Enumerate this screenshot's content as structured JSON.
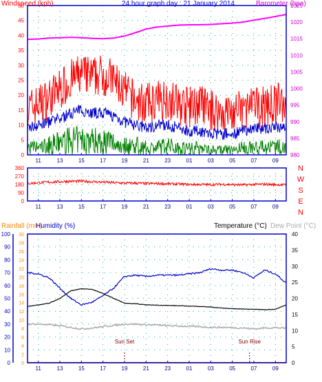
{
  "colors": {
    "wind": "#ff0000",
    "wind_avg": "#0000cc",
    "wind_low": "#008000",
    "barometer": "#ff00ff",
    "direction": "#ff0000",
    "rainfall": "#ff8800",
    "humidity": "#0000cc",
    "temperature": "#000000",
    "dewpoint": "#aaaaaa",
    "axis_left": "#ff0000",
    "axis_right": "#cc00cc",
    "grid_dot": "#00aaaa",
    "frame": "#0000cc",
    "title": "#0000cc"
  },
  "chart_data": [
    {
      "type": "line",
      "title": "24 hour graph day : 21 January 2014",
      "y_left_label": "Windspeed (kph)",
      "y_right_label": "Barometer (hpa)",
      "x_ticks": [
        "11",
        "13",
        "15",
        "17",
        "19",
        "21",
        "23",
        "01",
        "03",
        "05",
        "07",
        "09"
      ],
      "ylim_left": [
        0,
        50
      ],
      "y_left_ticks": [
        "0",
        "5",
        "10",
        "15",
        "20",
        "25",
        "30",
        "35",
        "40",
        "45",
        "50"
      ],
      "ylim_right": [
        980,
        1025
      ],
      "y_right_ticks": [
        "980",
        "985",
        "990",
        "995",
        "1000",
        "1005",
        "1010",
        "1015",
        "1020",
        "1025"
      ],
      "grid": true,
      "series": [
        {
          "axis": "right",
          "x": [
            0,
            1,
            2,
            3,
            4,
            5,
            6,
            7,
            8,
            9,
            10,
            11,
            12,
            13,
            14,
            15,
            16,
            17,
            18,
            19,
            20,
            21,
            22,
            23,
            24
          ],
          "values": [
            1014.8,
            1014.9,
            1015.2,
            1015.3,
            1015.4,
            1015.3,
            1015.1,
            1015.0,
            1015.2,
            1015.8,
            1016.8,
            1017.9,
            1018.5,
            1018.8,
            1019.1,
            1019.2,
            1019.2,
            1019.3,
            1019.5,
            1019.7,
            1020.0,
            1020.6,
            1021.1,
            1021.7,
            1022.3
          ]
        },
        {
          "axis": "left",
          "x": [
            0,
            1,
            2,
            3,
            4,
            5,
            6,
            7,
            8,
            9,
            10,
            11,
            12,
            13,
            14,
            15,
            16,
            17,
            18,
            19,
            20,
            21,
            22,
            23,
            24
          ],
          "values": [
            15,
            17,
            19,
            22,
            25,
            27,
            26,
            27,
            25,
            21,
            18,
            17,
            18,
            19,
            17,
            16,
            17,
            15,
            14,
            14,
            15,
            16,
            16,
            17,
            18
          ]
        },
        {
          "axis": "left",
          "x": [
            0,
            1,
            2,
            3,
            4,
            5,
            6,
            7,
            8,
            9,
            10,
            11,
            12,
            13,
            14,
            15,
            16,
            17,
            18,
            19,
            20,
            21,
            22,
            23,
            24
          ],
          "values": [
            9,
            10,
            11,
            12,
            14,
            15,
            14,
            14,
            13,
            11,
            10,
            9,
            10,
            10,
            9,
            8,
            8,
            7,
            7,
            7,
            8,
            9,
            9,
            9,
            10
          ]
        },
        {
          "axis": "left",
          "x": [
            0,
            1,
            2,
            3,
            4,
            5,
            6,
            7,
            8,
            9,
            10,
            11,
            12,
            13,
            14,
            15,
            16,
            17,
            18,
            19,
            20,
            21,
            22,
            23,
            24
          ],
          "values": [
            3,
            3,
            4,
            5,
            6,
            6,
            6,
            6,
            5,
            4,
            4,
            3,
            3,
            4,
            3,
            3,
            3,
            2,
            2,
            2,
            3,
            3,
            3,
            3,
            4
          ]
        }
      ]
    },
    {
      "type": "line",
      "x_ticks": [
        "11",
        "13",
        "15",
        "17",
        "19",
        "21",
        "23",
        "01",
        "03",
        "05",
        "07",
        "09"
      ],
      "ylim": [
        0,
        360
      ],
      "y_ticks": [
        "0",
        "90",
        "180",
        "270",
        "360"
      ],
      "right_labels": [
        "N",
        "W",
        "S",
        "E",
        "N"
      ],
      "grid": true,
      "series": [
        {
          "x": [
            0,
            1,
            2,
            3,
            4,
            5,
            6,
            7,
            8,
            9,
            10,
            11,
            12,
            13,
            14,
            15,
            16,
            17,
            18,
            19,
            20,
            21,
            22,
            23,
            24
          ],
          "values": [
            190,
            200,
            205,
            210,
            215,
            215,
            210,
            205,
            200,
            195,
            195,
            190,
            190,
            188,
            185,
            180,
            180,
            178,
            182,
            178,
            175,
            180,
            182,
            178,
            175
          ]
        }
      ]
    },
    {
      "type": "line",
      "legend": [
        "Rainfall (mm)",
        "Humidity (%)",
        "Temperature (°C)",
        "Dew Point (°C)"
      ],
      "x_ticks": [
        "11",
        "13",
        "15",
        "17",
        "19",
        "21",
        "23",
        "01",
        "03",
        "05",
        "07",
        "09"
      ],
      "ylim_humidity": [
        0,
        100
      ],
      "humidity_ticks": [
        "0",
        "10",
        "20",
        "30",
        "40",
        "50",
        "60",
        "70",
        "80",
        "90",
        "100"
      ],
      "ylim_rain": [
        0,
        30
      ],
      "rain_ticks": [
        "0",
        "2",
        "4",
        "6",
        "8",
        "10",
        "12",
        "14",
        "16",
        "18",
        "20",
        "22",
        "24",
        "26",
        "28",
        "30"
      ],
      "ylim_temp": [
        0,
        40
      ],
      "temp_ticks": [
        "0",
        "5",
        "10",
        "15",
        "20",
        "25",
        "30",
        "35",
        "40"
      ],
      "grid": true,
      "annotations": [
        {
          "label": "Sun Set",
          "x": 9.0
        },
        {
          "label": "Sun Rise",
          "x": 20.6
        }
      ],
      "series": [
        {
          "name": "Humidity (%)",
          "axis": "humidity",
          "x": [
            0,
            1,
            2,
            3,
            4,
            5,
            6,
            7,
            8,
            9,
            10,
            11,
            12,
            13,
            14,
            15,
            16,
            17,
            18,
            19,
            20,
            21,
            22,
            23,
            24
          ],
          "values": [
            70,
            69,
            66,
            58,
            50,
            45,
            47,
            52,
            58,
            67,
            68,
            67,
            68,
            68,
            68,
            69,
            70,
            73,
            72,
            72,
            70,
            66,
            72,
            69,
            62
          ]
        },
        {
          "name": "Temperature (°C)",
          "axis": "temp",
          "x": [
            0,
            1,
            2,
            3,
            4,
            5,
            6,
            7,
            8,
            9,
            10,
            11,
            12,
            13,
            14,
            15,
            16,
            17,
            18,
            19,
            20,
            21,
            22,
            23,
            24
          ],
          "values": [
            17.5,
            18.0,
            18.5,
            20.0,
            22.3,
            23.0,
            22.8,
            21.5,
            20.0,
            18.5,
            18.3,
            18.0,
            17.9,
            17.8,
            17.7,
            17.6,
            17.5,
            17.3,
            17.0,
            16.8,
            16.7,
            16.6,
            16.5,
            16.6,
            18.0
          ]
        },
        {
          "name": "Dew Point (°C)",
          "axis": "temp",
          "x": [
            0,
            1,
            2,
            3,
            4,
            5,
            6,
            7,
            8,
            9,
            10,
            11,
            12,
            13,
            14,
            15,
            16,
            17,
            18,
            19,
            20,
            21,
            22,
            23,
            24
          ],
          "values": [
            12.0,
            12.0,
            11.8,
            11.5,
            11.0,
            10.5,
            10.8,
            11.2,
            11.6,
            12.0,
            12.0,
            11.8,
            11.7,
            11.5,
            11.4,
            11.3,
            11.2,
            11.0,
            11.0,
            10.9,
            10.8,
            10.5,
            10.8,
            10.9,
            10.7
          ]
        },
        {
          "name": "Rainfall (mm)",
          "axis": "rain",
          "x": [
            0,
            24
          ],
          "values": [
            0,
            0
          ]
        }
      ]
    }
  ]
}
